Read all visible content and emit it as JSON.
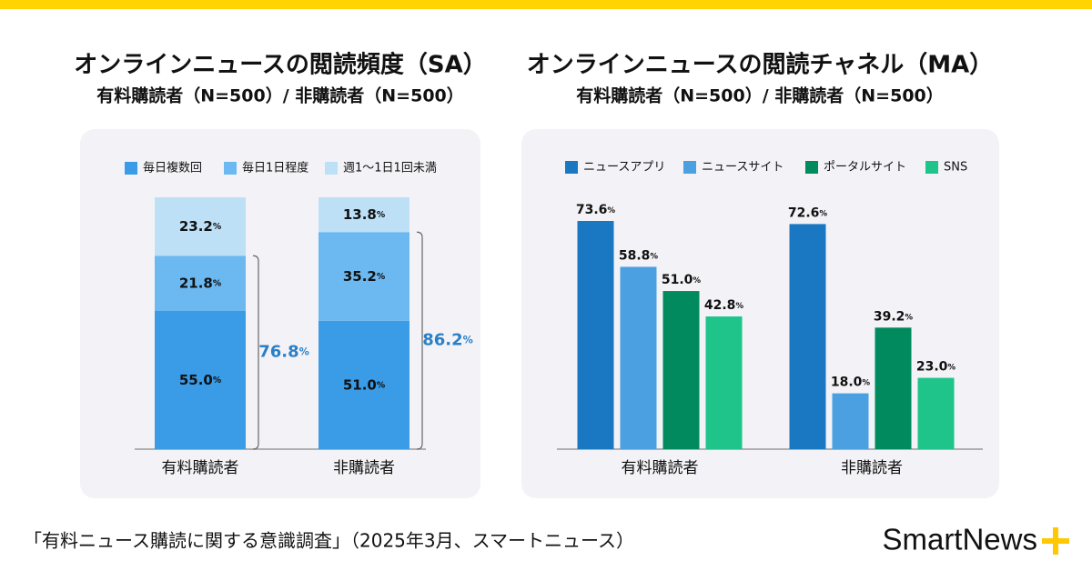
{
  "chart_data": [
    {
      "type": "stacked_bar",
      "title": "オンラインニュースの閲読頻度（SA）",
      "subtitle": "有料購読者（N=500）/ 非購読者（N=500）",
      "categories": [
        "有料購読者",
        "非購読者"
      ],
      "series": [
        {
          "name": "毎日複数回",
          "color": "#3a9be6",
          "values": [
            55.0,
            51.0
          ],
          "value_labels": [
            "55.0%",
            "51.0%"
          ]
        },
        {
          "name": "毎日1日程度",
          "color": "#6cb8f0",
          "values": [
            21.8,
            35.2
          ],
          "value_labels": [
            "21.8%",
            "35.2%"
          ]
        },
        {
          "name": "週1〜1日1回未満",
          "color": "#bde0f7",
          "values": [
            23.2,
            13.8
          ],
          "value_labels": [
            "23.2%",
            "13.8%"
          ]
        }
      ],
      "annotations": [
        {
          "value": 76.8,
          "label": "76.8%"
        },
        {
          "value": 86.2,
          "label": "86.2%"
        }
      ]
    },
    {
      "type": "bar",
      "title": "オンラインニュースの閲読チャネル（MA）",
      "subtitle": "有料購読者（N=500）/ 非購読者（N=500）",
      "categories": [
        "有料購読者",
        "非購読者"
      ],
      "series": [
        {
          "name": "ニュースアプリ",
          "color": "#1a78c2",
          "values": [
            73.6,
            72.6
          ],
          "value_labels": [
            "73.6%",
            "72.6%"
          ]
        },
        {
          "name": "ニュースサイト",
          "color": "#4aa0e0",
          "values": [
            58.8,
            18.0
          ],
          "value_labels": [
            "58.8%",
            "18.0%"
          ]
        },
        {
          "name": "ポータルサイト",
          "color": "#008a5e",
          "values": [
            51.0,
            39.2
          ],
          "value_labels": [
            "51.0%",
            "39.2%"
          ]
        },
        {
          "name": "SNS",
          "color": "#1ec48a",
          "values": [
            42.8,
            23.0
          ],
          "value_labels": [
            "42.8%",
            "23.0%"
          ]
        }
      ]
    }
  ],
  "source": "「有料ニュース購読に関する意識調査」（2025年3月、スマートニュース）",
  "logo": "SmartNews"
}
